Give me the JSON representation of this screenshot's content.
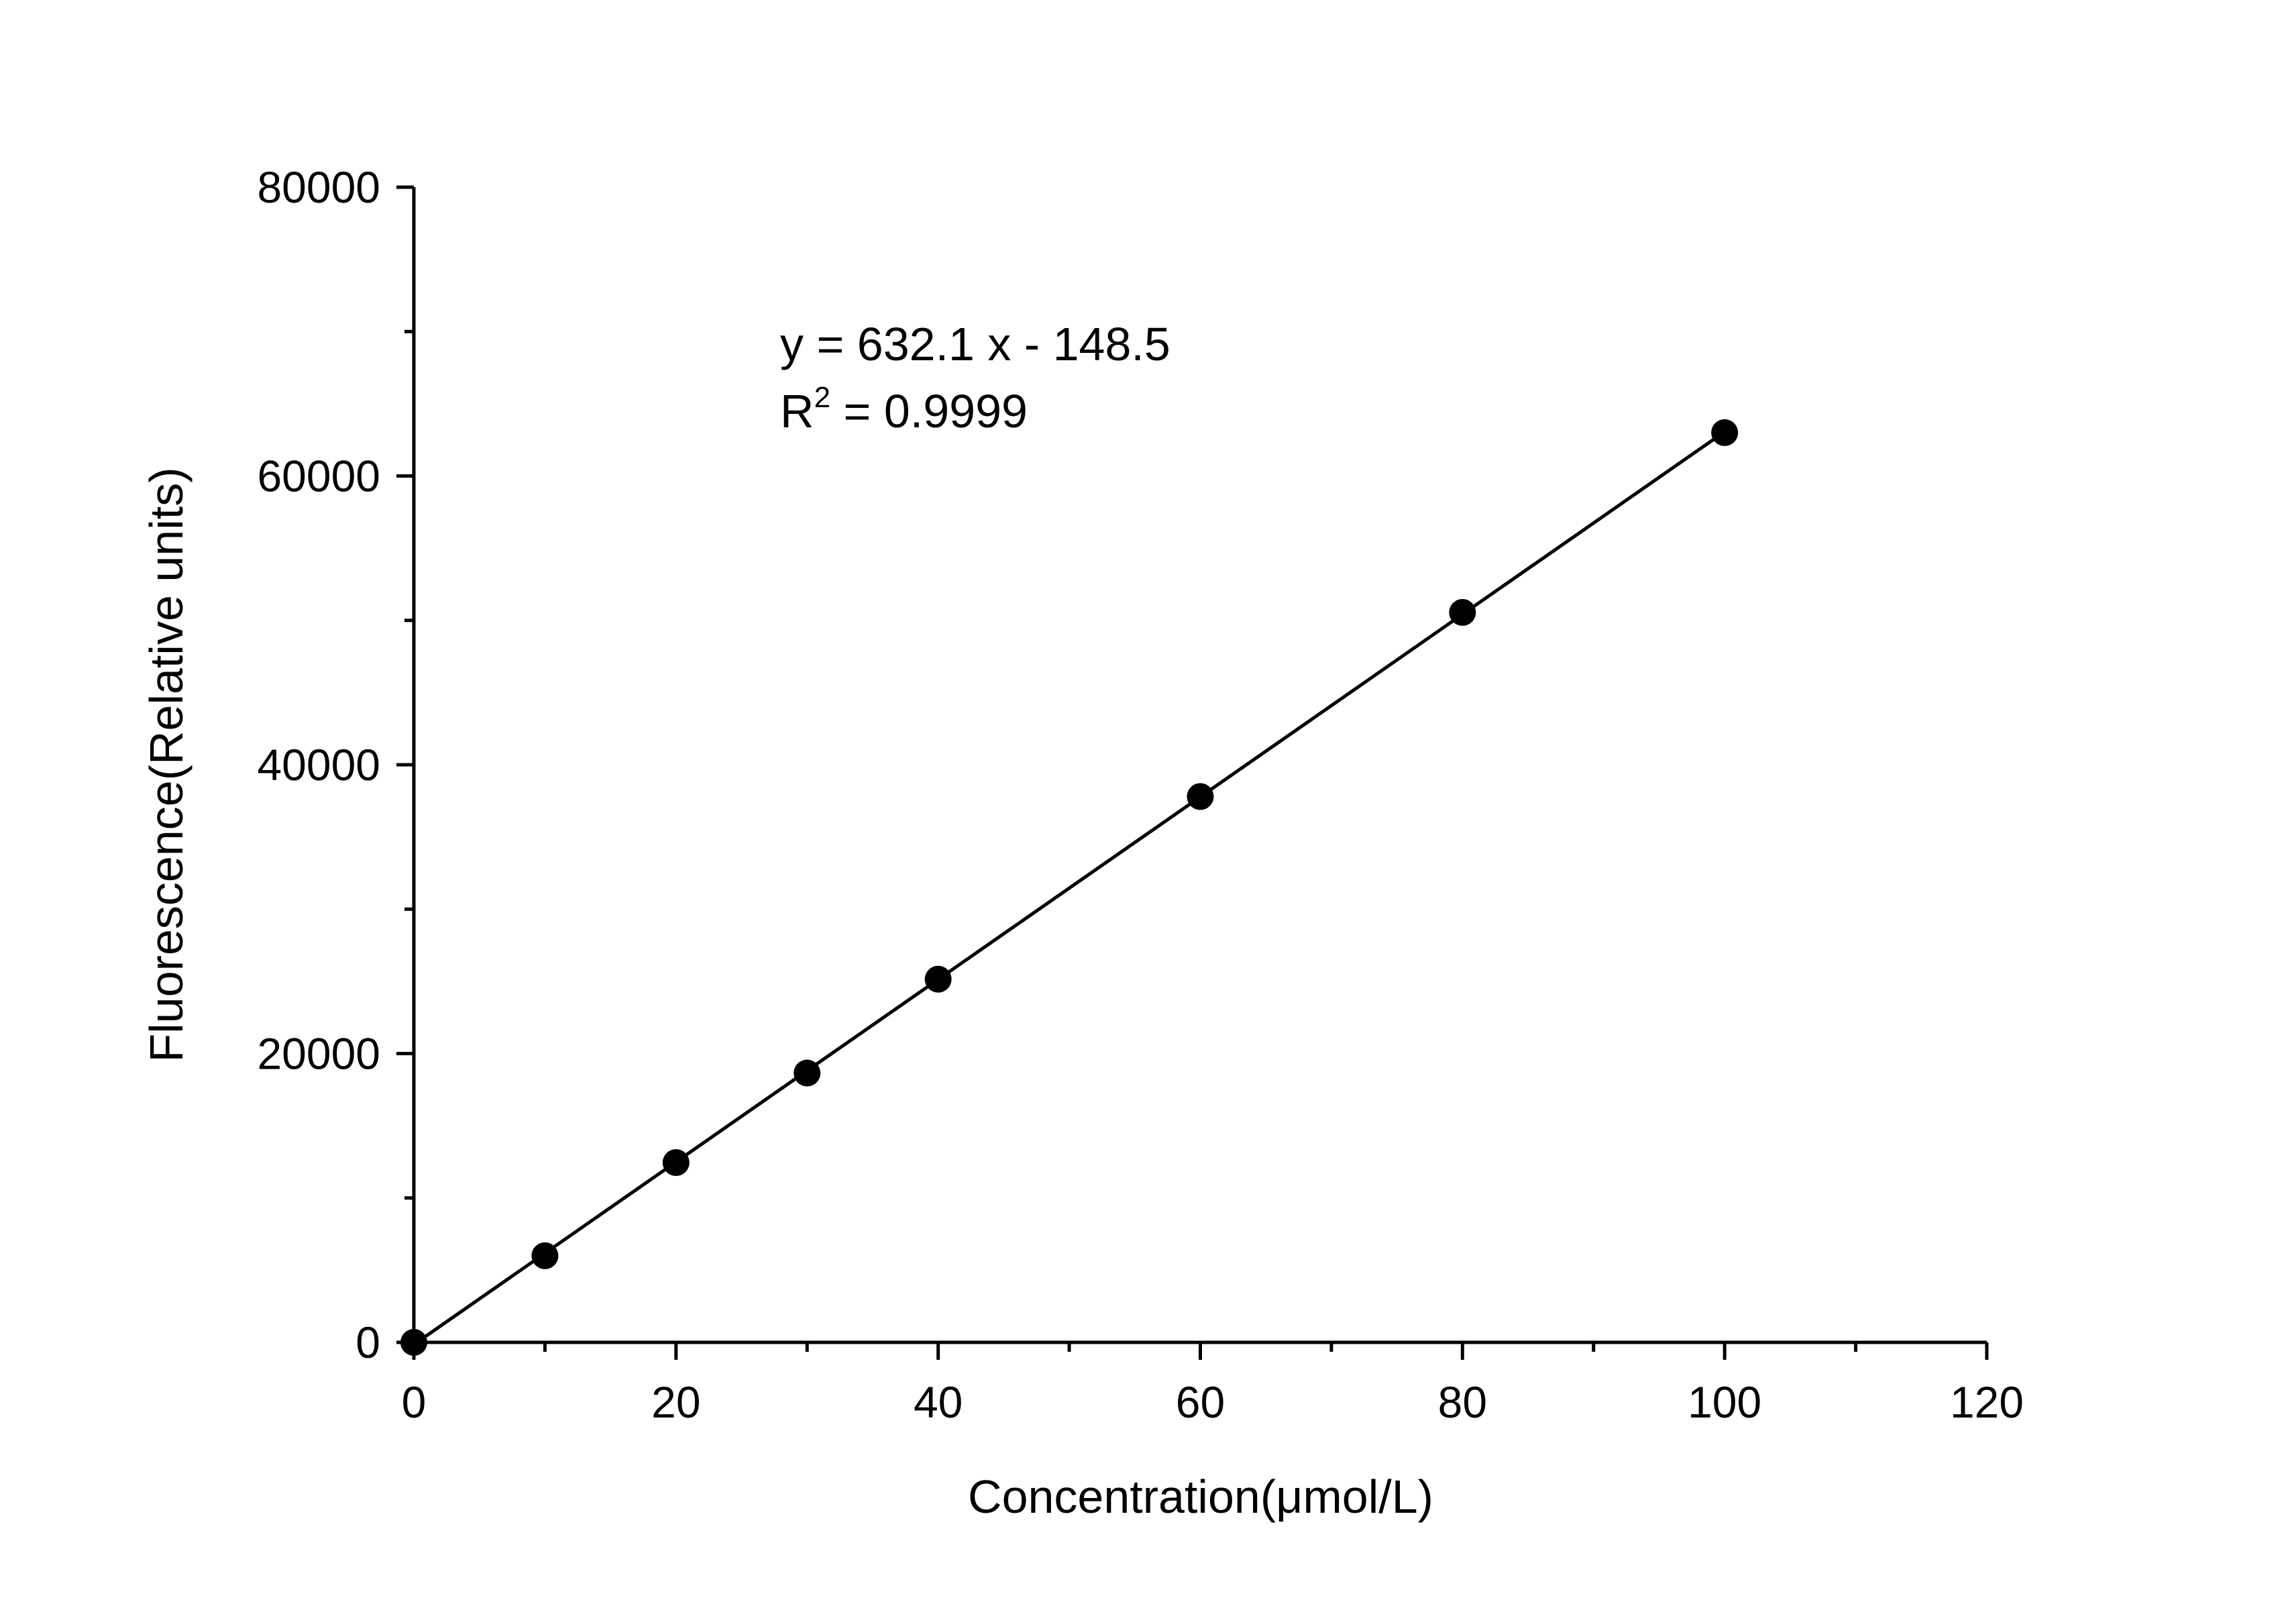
{
  "chart_data": {
    "type": "scatter",
    "xlabel": "Concentration(μmol/L)",
    "ylabel": "Fluorescence(Relative units)",
    "xlim": [
      0,
      120
    ],
    "ylim": [
      0,
      80000
    ],
    "x_ticks": [
      "0",
      "20",
      "40",
      "60",
      "80",
      "100",
      "120"
    ],
    "y_ticks": [
      "0",
      "20000",
      "40000",
      "60000",
      "80000"
    ],
    "grid": false,
    "series": [
      {
        "x": [
          0,
          10,
          20,
          30,
          40,
          60,
          80,
          100
        ],
        "y": [
          0,
          6000,
          12450,
          18650,
          25150,
          37800,
          50550,
          63000
        ],
        "marker": "circle",
        "color": "#000000"
      }
    ],
    "fit": {
      "slope": 632.1,
      "intercept": -148.5,
      "color": "#000000"
    },
    "annotations": {
      "equation": "y = 632.1 x - 148.5",
      "r2_label": "R",
      "r2_sup": "2",
      "r2_value": " = 0.9999"
    }
  }
}
